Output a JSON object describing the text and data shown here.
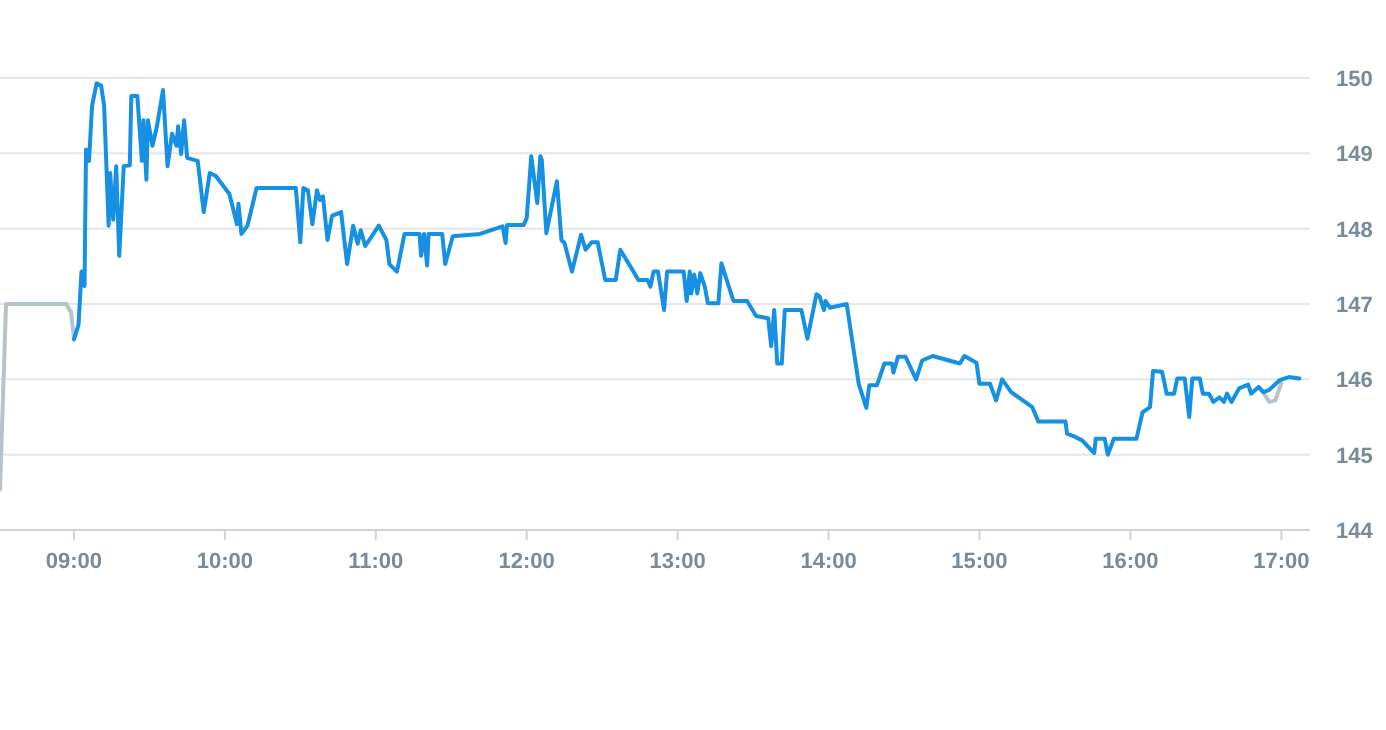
{
  "chart_data": {
    "type": "line",
    "xlim": [
      8.51,
      17.19
    ],
    "ylim": [
      144,
      150
    ],
    "xticks": [
      {
        "value": 9,
        "label": "09:00"
      },
      {
        "value": 10,
        "label": "10:00"
      },
      {
        "value": 11,
        "label": "11:00"
      },
      {
        "value": 12,
        "label": "12:00"
      },
      {
        "value": 13,
        "label": "13:00"
      },
      {
        "value": 14,
        "label": "14:00"
      },
      {
        "value": 15,
        "label": "15:00"
      },
      {
        "value": 16,
        "label": "16:00"
      },
      {
        "value": 17,
        "label": "17:00"
      }
    ],
    "yticks": [
      144,
      145,
      146,
      147,
      148,
      149,
      150
    ],
    "grid": "y",
    "marker": "none",
    "line_style": "solid",
    "series": [
      {
        "color": "#b4c3cc",
        "x": [
          8.51,
          8.55,
          8.95,
          8.97,
          8.98,
          9.0
        ],
        "values": [
          144.54,
          147.0,
          147.0,
          146.92,
          146.9,
          146.55
        ]
      },
      {
        "color": "#b4c3cc",
        "x": [
          16.88,
          16.92,
          16.96,
          17.0
        ],
        "values": [
          145.83,
          145.7,
          145.72,
          145.95
        ]
      },
      {
        "color": "#1590e3",
        "x": [
          9.0,
          9.03,
          9.05,
          9.07,
          9.08,
          9.1,
          9.12,
          9.15,
          9.18,
          9.2,
          9.23,
          9.24,
          9.26,
          9.28,
          9.3,
          9.33,
          9.37,
          9.38,
          9.42,
          9.45,
          9.46,
          9.48,
          9.49,
          9.52,
          9.55,
          9.59,
          9.62,
          9.65,
          9.68,
          9.69,
          9.71,
          9.73,
          9.75,
          9.82,
          9.86,
          9.9,
          9.94,
          10.03,
          10.08,
          10.09,
          10.11,
          10.15,
          10.21,
          10.47,
          10.5,
          10.52,
          10.55,
          10.58,
          10.61,
          10.63,
          10.65,
          10.68,
          10.71,
          10.77,
          10.81,
          10.85,
          10.88,
          10.9,
          10.93,
          11.02,
          11.07,
          11.09,
          11.14,
          11.19,
          11.29,
          11.3,
          11.32,
          11.34,
          11.35,
          11.44,
          11.46,
          11.51,
          11.69,
          11.84,
          11.86,
          11.87,
          11.98,
          12.0,
          12.03,
          12.07,
          12.09,
          12.1,
          12.13,
          12.2,
          12.23,
          12.25,
          12.3,
          12.36,
          12.39,
          12.43,
          12.47,
          12.52,
          12.59,
          12.62,
          12.74,
          12.8,
          12.82,
          12.84,
          12.87,
          12.91,
          12.93,
          13.04,
          13.06,
          13.08,
          13.09,
          13.11,
          13.13,
          13.15,
          13.18,
          13.2,
          13.27,
          13.29,
          13.37,
          13.46,
          13.52,
          13.6,
          13.62,
          13.64,
          13.66,
          13.69,
          13.71,
          13.82,
          13.86,
          13.92,
          13.94,
          13.97,
          13.98,
          14.01,
          14.12,
          14.2,
          14.25,
          14.27,
          14.32,
          14.37,
          14.42,
          14.43,
          14.46,
          14.51,
          14.58,
          14.62,
          14.69,
          14.87,
          14.9,
          14.98,
          15.0,
          15.07,
          15.11,
          15.15,
          15.21,
          15.35,
          15.39,
          15.57,
          15.58,
          15.63,
          15.68,
          15.76,
          15.77,
          15.83,
          15.85,
          15.89,
          16.04,
          16.08,
          16.13,
          16.15,
          16.21,
          16.24,
          16.29,
          16.31,
          16.36,
          16.39,
          16.41,
          16.46,
          16.48,
          16.52,
          16.55,
          16.59,
          16.62,
          16.64,
          16.67,
          16.72,
          16.78,
          16.8,
          16.85,
          16.88,
          16.92,
          16.99,
          17.05,
          17.12
        ],
        "values": [
          146.53,
          146.72,
          147.43,
          147.24,
          149.05,
          148.9,
          149.63,
          149.93,
          149.9,
          149.63,
          148.04,
          148.74,
          148.12,
          148.83,
          147.64,
          148.83,
          148.84,
          149.76,
          149.76,
          148.9,
          149.44,
          148.65,
          149.44,
          149.1,
          149.36,
          149.84,
          148.83,
          149.26,
          149.1,
          149.36,
          148.99,
          149.44,
          148.94,
          148.9,
          148.22,
          148.74,
          148.7,
          148.46,
          148.06,
          148.33,
          147.93,
          148.04,
          148.54,
          148.54,
          147.82,
          148.54,
          148.51,
          148.06,
          148.51,
          148.38,
          148.43,
          147.85,
          148.17,
          148.22,
          147.53,
          148.04,
          147.8,
          147.98,
          147.77,
          148.04,
          147.85,
          147.53,
          147.43,
          147.93,
          147.93,
          147.64,
          147.93,
          147.51,
          147.93,
          147.93,
          147.53,
          147.9,
          147.93,
          148.03,
          147.81,
          148.05,
          148.05,
          148.14,
          148.96,
          148.34,
          148.96,
          148.91,
          147.94,
          148.63,
          147.85,
          147.81,
          147.43,
          147.92,
          147.72,
          147.82,
          147.82,
          147.32,
          147.32,
          147.72,
          147.32,
          147.32,
          147.23,
          147.43,
          147.43,
          146.92,
          147.43,
          147.43,
          147.04,
          147.43,
          147.14,
          147.39,
          147.14,
          147.41,
          147.23,
          147.01,
          147.01,
          147.54,
          147.04,
          147.04,
          146.84,
          146.81,
          146.44,
          146.92,
          146.21,
          146.21,
          146.92,
          146.92,
          146.54,
          147.13,
          147.1,
          146.92,
          147.04,
          146.95,
          147.0,
          145.94,
          145.62,
          145.92,
          145.92,
          146.21,
          146.21,
          146.09,
          146.3,
          146.3,
          146.0,
          146.25,
          146.31,
          146.21,
          146.31,
          146.22,
          145.94,
          145.94,
          145.72,
          146.0,
          145.83,
          145.63,
          145.44,
          145.44,
          145.28,
          145.24,
          145.19,
          145.02,
          145.21,
          145.21,
          145.0,
          145.21,
          145.21,
          145.56,
          145.63,
          146.11,
          146.1,
          145.81,
          145.81,
          146.01,
          146.01,
          145.5,
          146.01,
          146.01,
          145.81,
          145.81,
          145.7,
          145.76,
          145.7,
          145.81,
          145.7,
          145.88,
          145.93,
          145.81,
          145.9,
          145.83,
          145.86,
          145.99,
          146.03,
          146.01
        ]
      }
    ]
  }
}
